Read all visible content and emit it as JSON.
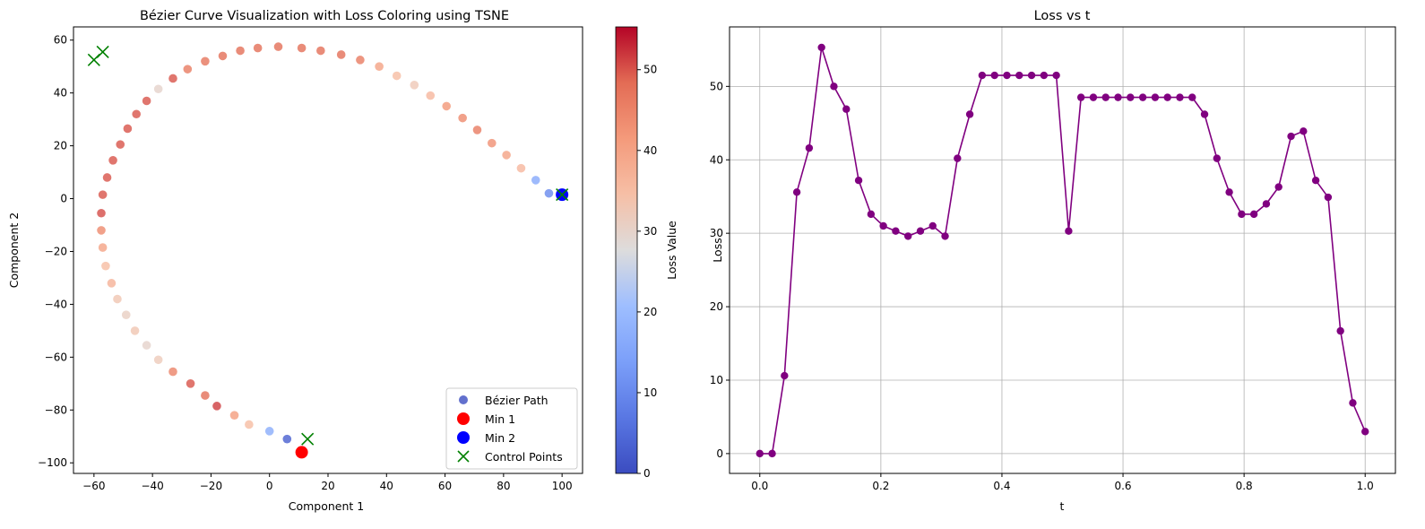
{
  "chart_data": [
    {
      "type": "scatter",
      "title": "Bézier Curve Visualization with Loss Coloring using TSNE",
      "xlabel": "Component 1",
      "ylabel": "Component 2",
      "xlim": [
        -67,
        107
      ],
      "ylim": [
        -104,
        65
      ],
      "xticks": [
        -60,
        -40,
        -20,
        0,
        20,
        40,
        60,
        80,
        100
      ],
      "yticks": [
        -100,
        -80,
        -60,
        -40,
        -20,
        0,
        20,
        40,
        60
      ],
      "grid": false,
      "legend_position": "bottom-right",
      "colormap": "coolwarm",
      "colorbar": {
        "label": "Loss Value",
        "range": [
          0,
          55.3
        ],
        "ticks": [
          0,
          10,
          20,
          30,
          40,
          50
        ]
      },
      "path_series": {
        "name": "Bézier Path",
        "x": [
          6.0,
          0.0,
          -7.0,
          -12.0,
          -18.0,
          -22.0,
          -27.0,
          -33.0,
          -38.0,
          -42.0,
          -46.0,
          -49.0,
          -52.0,
          -54.0,
          -56.0,
          -57.0,
          -57.5,
          -57.5,
          -57.0,
          -55.5,
          -53.5,
          -51.0,
          -48.5,
          -45.5,
          -42.0,
          -38.0,
          -33.0,
          -28.0,
          -22.0,
          -16.0,
          -10.0,
          -4.0,
          3.0,
          11.0,
          17.5,
          24.5,
          31.0,
          37.5,
          43.5,
          49.5,
          55.0,
          60.5,
          66.0,
          71.0,
          76.0,
          81.0,
          86.0,
          91.0,
          95.5,
          100.0
        ],
        "y": [
          -91.0,
          -88.0,
          -85.5,
          -82.0,
          -78.5,
          -74.5,
          -70.0,
          -65.5,
          -61.0,
          -55.5,
          -50.0,
          -44.0,
          -38.0,
          -32.0,
          -25.5,
          -18.5,
          -12.0,
          -5.5,
          1.5,
          8.0,
          14.5,
          20.5,
          26.5,
          32.0,
          37.0,
          41.5,
          45.5,
          49.0,
          52.0,
          54.0,
          56.0,
          57.0,
          57.5,
          57.0,
          56.0,
          54.5,
          52.5,
          50.0,
          46.5,
          43.0,
          39.0,
          35.0,
          30.5,
          26.0,
          21.0,
          16.5,
          11.5,
          7.0,
          2.0,
          1.5
        ],
        "loss": [
          3.0,
          16.7,
          35.0,
          41.0,
          51.5,
          48.0,
          50.0,
          45.0,
          32.0,
          30.0,
          33.0,
          31.0,
          33.0,
          37.0,
          35.0,
          40.0,
          44.0,
          50.5,
          50.0,
          50.0,
          50.0,
          50.0,
          50.0,
          50.0,
          50.0,
          30.0,
          50.0,
          46.0,
          47.0,
          48.0,
          48.0,
          48.0,
          48.0,
          48.0,
          48.0,
          48.0,
          46.0,
          40.0,
          35.0,
          32.5,
          36.0,
          42.0,
          44.0,
          46.0,
          43.0,
          40.0,
          36.0,
          16.0,
          10.0,
          0.5
        ]
      },
      "min1": {
        "name": "Min 1",
        "x": 11.0,
        "y": -96.0,
        "color": "#ff0000"
      },
      "min2": {
        "name": "Min 2",
        "x": 100.0,
        "y": 1.5,
        "color": "#0000ff"
      },
      "control_points": {
        "name": "Control Points",
        "x": [
          -60.0,
          -57.0,
          13.0,
          100.0
        ],
        "y": [
          52.5,
          55.5,
          -91.0,
          1.5
        ],
        "color": "#008000"
      }
    },
    {
      "type": "line",
      "title": "Loss vs t",
      "xlabel": "t",
      "ylabel": "Loss",
      "xlim": [
        -0.05,
        1.05
      ],
      "ylim": [
        -2.7,
        58.1
      ],
      "xticks": [
        0.0,
        0.2,
        0.4,
        0.6,
        0.8,
        1.0
      ],
      "yticks": [
        0,
        10,
        20,
        30,
        40,
        50
      ],
      "grid": true,
      "color": "#800080",
      "x": [
        0.0,
        0.0204,
        0.0408,
        0.0612,
        0.0816,
        0.102,
        0.1224,
        0.1429,
        0.1633,
        0.1837,
        0.2041,
        0.2245,
        0.2449,
        0.2653,
        0.2857,
        0.3061,
        0.3265,
        0.3469,
        0.3673,
        0.3878,
        0.4082,
        0.4286,
        0.449,
        0.4694,
        0.4898,
        0.5102,
        0.5306,
        0.551,
        0.5714,
        0.5918,
        0.6122,
        0.6327,
        0.6531,
        0.6735,
        0.6939,
        0.7143,
        0.7347,
        0.7551,
        0.7755,
        0.7959,
        0.8163,
        0.8367,
        0.8571,
        0.8776,
        0.898,
        0.9184,
        0.9388,
        0.9592,
        0.9796,
        1.0
      ],
      "y": [
        0.0,
        0.0,
        10.6,
        35.6,
        41.6,
        55.3,
        50.0,
        46.9,
        37.2,
        32.6,
        31.0,
        30.3,
        29.6,
        30.3,
        31.0,
        29.6,
        40.2,
        46.2,
        51.5,
        51.5,
        51.5,
        51.5,
        51.5,
        51.5,
        51.5,
        30.3,
        48.5,
        48.5,
        48.5,
        48.5,
        48.5,
        48.5,
        48.5,
        48.5,
        48.5,
        48.5,
        46.2,
        40.2,
        35.6,
        32.6,
        32.6,
        34.0,
        36.3,
        43.2,
        43.9,
        37.2,
        34.9,
        16.7,
        6.9,
        3.0
      ]
    }
  ]
}
